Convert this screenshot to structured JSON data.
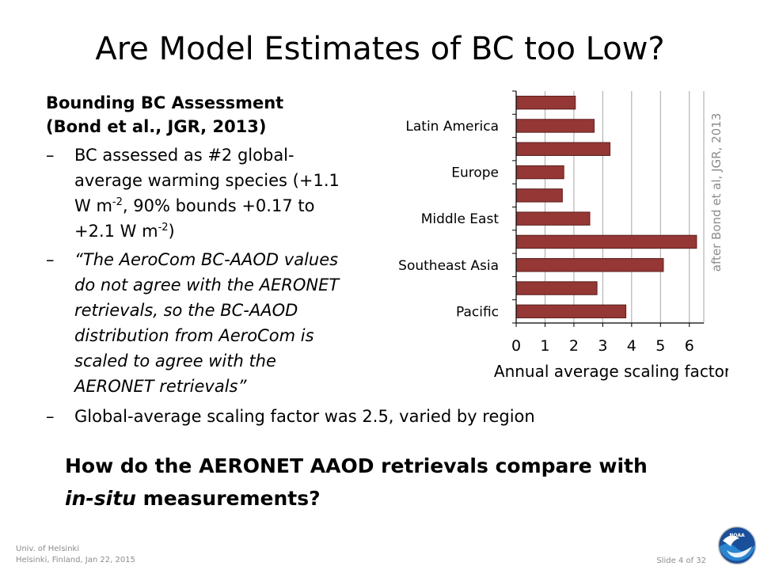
{
  "slide": {
    "title": "Are Model Estimates of BC too Low?",
    "assessment_heading_1": "Bounding BC Assessment",
    "assessment_heading_2": "(Bond et al., JGR, 2013)",
    "bullet_dash": "–",
    "bullet1_line1": "BC assessed as #2 global-",
    "bullet1_line2": "average warming species  (+1.1",
    "bullet1_line3a": "W m",
    "bullet1_sup1": "-2",
    "bullet1_line3b": ", 90% bounds +0.17 to",
    "bullet1_line4a": "+2.1 W m",
    "bullet1_sup2": "-2",
    "bullet1_line4b": ")",
    "bullet2_line1": "“The AeroCom BC-AAOD values",
    "bullet2_line2": "do not agree with the AERONET",
    "bullet2_line3": "retrievals, so the BC-AAOD",
    "bullet2_line4": "distribution from AeroCom is",
    "bullet2_line5": "scaled to agree with the",
    "bullet2_line6": "AERONET retrievals”",
    "bullet3": "Global-average scaling factor was 2.5, varied by region",
    "question_line1": "How do the AERONET AAOD retrievals compare with",
    "question_line2_italic": "in-situ",
    "question_line2_rest": " measurements?",
    "footer_line1": "Univ. of Helsinki",
    "footer_line2": "Helsinki, Finland, Jan 22, 2015",
    "slide_number": "Slide 4 of 32",
    "logo_text": "NOAA",
    "logo_icon": "noaa-logo"
  },
  "chart_data": {
    "type": "bar",
    "orientation": "horizontal",
    "categories": [
      "",
      "Latin America",
      "",
      "Europe",
      "",
      "Middle East",
      "",
      "Southeast Asia",
      "",
      "Pacific"
    ],
    "values": [
      2.05,
      2.7,
      3.25,
      1.65,
      1.6,
      2.55,
      6.25,
      5.1,
      2.8,
      3.8
    ],
    "xlabel": "Annual average scaling factor",
    "xlim": [
      0,
      6.5
    ],
    "xticks": [
      "0",
      "1",
      "2",
      "3",
      "4",
      "5",
      "6"
    ],
    "grid": "vertical",
    "side_note": "after Bond et al, JGR, 2013",
    "bar_color": "#953735",
    "bar_edge_color": "#5a1f1e"
  }
}
